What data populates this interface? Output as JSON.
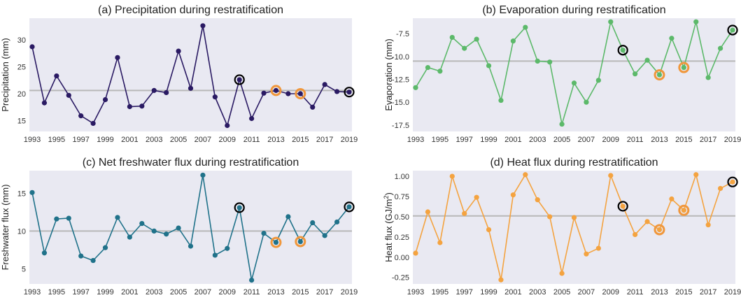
{
  "colors": {
    "panel_bg": "#e9e9f2",
    "mean_line": "#b8b8b8",
    "highlight_orange": "#f0973c",
    "highlight_black": "#000000"
  },
  "chart_data": [
    {
      "type": "line",
      "title": "(a) Precipitation during restratification",
      "xlabel": "",
      "ylabel": "Precipitation (mm)",
      "color": "#2a1a63",
      "x": [
        1993,
        1994,
        1995,
        1996,
        1997,
        1998,
        1999,
        2000,
        2001,
        2002,
        2003,
        2004,
        2005,
        2006,
        2007,
        2008,
        2009,
        2010,
        2011,
        2012,
        2013,
        2014,
        2015,
        2016,
        2017,
        2018,
        2019
      ],
      "y": [
        28.7,
        18.3,
        23.3,
        19.7,
        15.9,
        14.5,
        18.9,
        26.7,
        17.6,
        17.7,
        20.6,
        20.2,
        27.9,
        21.0,
        32.6,
        19.4,
        14.1,
        22.6,
        15.4,
        20.1,
        20.6,
        20.0,
        20.0,
        17.5,
        21.7,
        20.4,
        20.3
      ],
      "mean": 20.6,
      "ylim": [
        13,
        34
      ],
      "yticks": [
        15,
        20,
        25,
        30
      ],
      "xticks": [
        1993,
        1995,
        1997,
        1999,
        2001,
        2003,
        2005,
        2007,
        2009,
        2011,
        2013,
        2015,
        2017,
        2019
      ],
      "highlight_black": [
        2010,
        2019
      ],
      "highlight_orange": [
        2013,
        2015
      ],
      "grid": false
    },
    {
      "type": "line",
      "title": "(b) Evaporation during restratification",
      "xlabel": "",
      "ylabel": "Evaporation (mm)",
      "color": "#5cb96a",
      "x": [
        1993,
        1994,
        1995,
        1996,
        1997,
        1998,
        1999,
        2000,
        2001,
        2002,
        2003,
        2004,
        2005,
        2006,
        2007,
        2008,
        2009,
        2010,
        2011,
        2012,
        2013,
        2014,
        2015,
        2016,
        2017,
        2018,
        2019
      ],
      "y": [
        -13.4,
        -11.2,
        -11.6,
        -7.9,
        -9.1,
        -8.1,
        -11.0,
        -14.8,
        -8.3,
        -6.8,
        -10.5,
        -10.6,
        -17.4,
        -12.9,
        -15.0,
        -12.6,
        -6.2,
        -9.3,
        -11.9,
        -10.4,
        -12.0,
        -8.0,
        -11.2,
        -6.2,
        -12.3,
        -9.1,
        -7.1
      ],
      "mean": -10.5,
      "ylim": [
        -18.2,
        -5.8
      ],
      "yticks": [
        -17.5,
        -15.0,
        -12.5,
        -10.0,
        -7.5
      ],
      "xticks": [
        1993,
        1995,
        1997,
        1999,
        2001,
        2003,
        2005,
        2007,
        2009,
        2011,
        2013,
        2015,
        2017,
        2019
      ],
      "highlight_black": [
        2010,
        2019
      ],
      "highlight_orange": [
        2013,
        2015
      ],
      "grid": false
    },
    {
      "type": "line",
      "title": "(c) Net freshwater flux during restratification",
      "xlabel": "",
      "ylabel": "Freshwater flux (mm)",
      "color": "#20728a",
      "x": [
        1993,
        1994,
        1995,
        1996,
        1997,
        1998,
        1999,
        2000,
        2001,
        2002,
        2003,
        2004,
        2005,
        2006,
        2007,
        2008,
        2009,
        2010,
        2011,
        2012,
        2013,
        2014,
        2015,
        2016,
        2017,
        2018,
        2019
      ],
      "y": [
        15.1,
        7.1,
        11.6,
        11.7,
        6.7,
        6.1,
        7.8,
        11.8,
        9.2,
        11.0,
        10.0,
        9.6,
        10.4,
        8.0,
        17.4,
        6.8,
        7.7,
        13.1,
        3.5,
        9.7,
        8.5,
        11.9,
        8.6,
        11.1,
        9.4,
        11.2,
        13.2
      ],
      "mean": 10.0,
      "ylim": [
        3,
        18
      ],
      "yticks": [
        5,
        10,
        15
      ],
      "xticks": [
        1993,
        1995,
        1997,
        1999,
        2001,
        2003,
        2005,
        2007,
        2009,
        2011,
        2013,
        2015,
        2017,
        2019
      ],
      "highlight_black": [
        2010,
        2019
      ],
      "highlight_orange": [
        2013,
        2015
      ],
      "grid": false
    },
    {
      "type": "line",
      "title": "(d) Heat flux during restratification",
      "xlabel": "",
      "ylabel": "Heat flux (GJ/m",
      "ylabel_sup": "2",
      "ylabel_end": ")",
      "color": "#f4a340",
      "x": [
        1993,
        1994,
        1995,
        1996,
        1997,
        1998,
        1999,
        2000,
        2001,
        2002,
        2003,
        2004,
        2005,
        2006,
        2007,
        2008,
        2009,
        2010,
        2011,
        2012,
        2013,
        2014,
        2015,
        2016,
        2017,
        2018,
        2019
      ],
      "y": [
        0.05,
        0.56,
        0.18,
        1.0,
        0.54,
        0.74,
        0.34,
        -0.28,
        0.77,
        1.02,
        0.71,
        0.5,
        -0.2,
        0.49,
        0.04,
        0.11,
        1.01,
        0.63,
        0.28,
        0.44,
        0.34,
        0.72,
        0.58,
        1.02,
        0.4,
        0.85,
        0.93
      ],
      "mean": 0.51,
      "ylim": [
        -0.33,
        1.07
      ],
      "yticks": [
        -0.25,
        0.0,
        0.25,
        0.5,
        0.75,
        1.0
      ],
      "xticks": [
        1993,
        1995,
        1997,
        1999,
        2001,
        2003,
        2005,
        2007,
        2009,
        2011,
        2013,
        2015,
        2017,
        2019
      ],
      "highlight_black": [
        2010,
        2019
      ],
      "highlight_orange": [
        2013,
        2015
      ],
      "grid": false
    }
  ]
}
